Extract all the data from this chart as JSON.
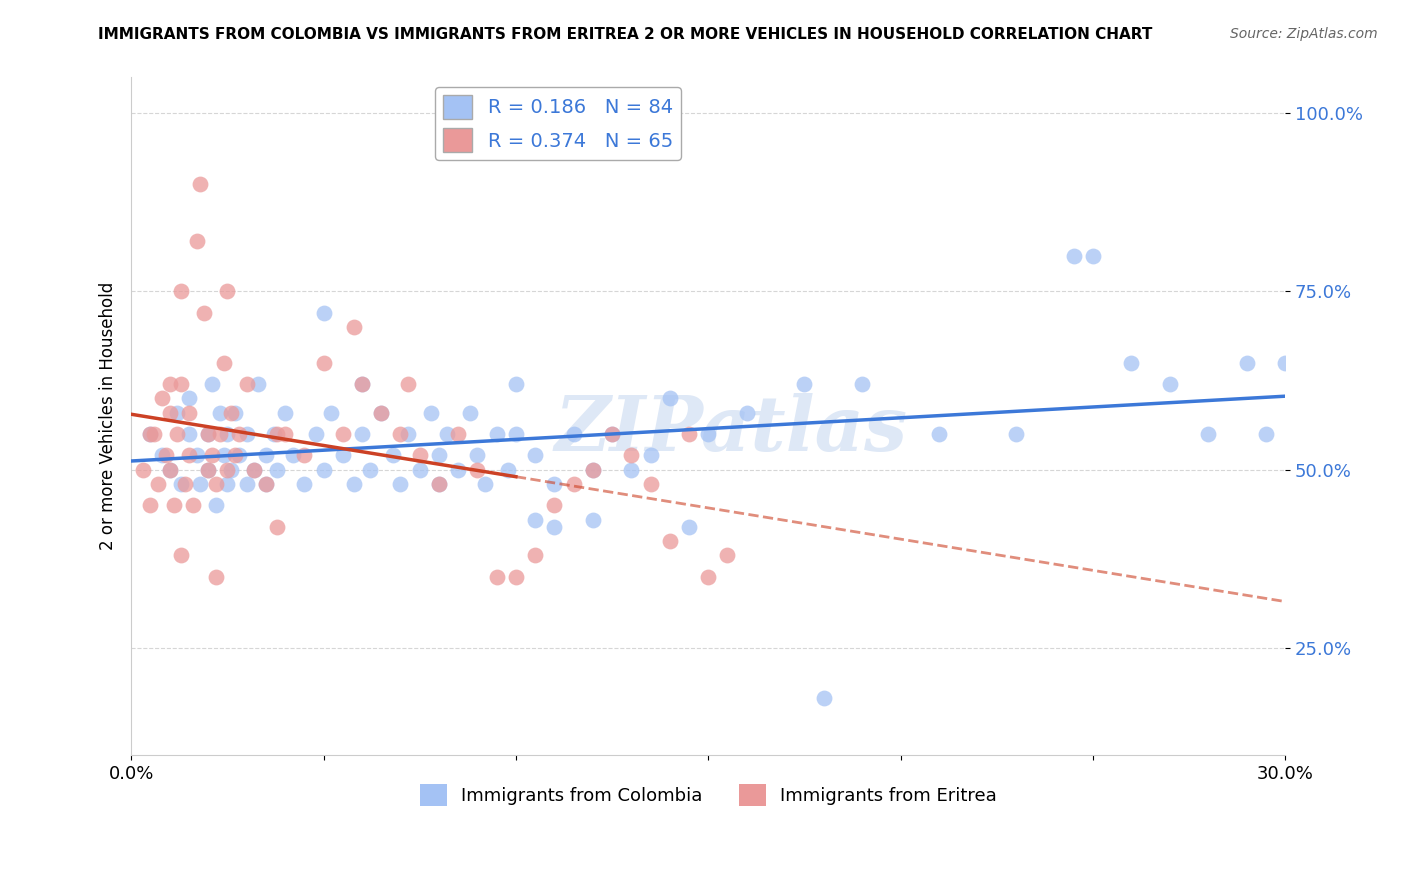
{
  "title": "IMMIGRANTS FROM COLOMBIA VS IMMIGRANTS FROM ERITREA 2 OR MORE VEHICLES IN HOUSEHOLD CORRELATION CHART",
  "source": "Source: ZipAtlas.com",
  "ylabel": "2 or more Vehicles in Household",
  "xlim": [
    0.0,
    30.0
  ],
  "ylim": [
    10.0,
    105.0
  ],
  "yticks": [
    25.0,
    50.0,
    75.0,
    100.0
  ],
  "ytick_labels": [
    "25.0%",
    "50.0%",
    "75.0%",
    "100.0%"
  ],
  "xticks": [
    0.0,
    5.0,
    10.0,
    15.0,
    20.0,
    25.0,
    30.0
  ],
  "xtick_labels": [
    "0.0%",
    "",
    "",
    "",
    "",
    "",
    "30.0%"
  ],
  "colombia_color": "#a4c2f4",
  "eritrea_color": "#ea9999",
  "colombia_line_color": "#3c78d8",
  "eritrea_line_color": "#cc4125",
  "colombia_R": 0.186,
  "colombia_N": 84,
  "eritrea_R": 0.374,
  "eritrea_N": 65,
  "watermark": "ZIPatlas",
  "colombia_scatter_x": [
    0.5,
    0.8,
    1.0,
    1.2,
    1.3,
    1.5,
    1.5,
    1.7,
    1.8,
    2.0,
    2.0,
    2.1,
    2.2,
    2.3,
    2.4,
    2.5,
    2.5,
    2.6,
    2.7,
    2.8,
    3.0,
    3.0,
    3.2,
    3.3,
    3.5,
    3.5,
    3.7,
    3.8,
    4.0,
    4.2,
    4.5,
    4.8,
    5.0,
    5.0,
    5.2,
    5.5,
    5.8,
    6.0,
    6.0,
    6.2,
    6.5,
    6.8,
    7.0,
    7.2,
    7.5,
    7.8,
    8.0,
    8.0,
    8.2,
    8.5,
    8.8,
    9.0,
    9.2,
    9.5,
    9.8,
    10.0,
    10.0,
    10.5,
    11.0,
    11.5,
    12.0,
    12.0,
    12.5,
    13.0,
    13.5,
    14.0,
    15.0,
    16.0,
    17.5,
    19.0,
    21.0,
    23.0,
    24.5,
    25.0,
    26.0,
    27.0,
    28.0,
    29.0,
    29.5,
    30.0,
    10.5,
    11.0,
    14.5,
    18.0
  ],
  "colombia_scatter_y": [
    55,
    52,
    50,
    58,
    48,
    55,
    60,
    52,
    48,
    55,
    50,
    62,
    45,
    58,
    52,
    55,
    48,
    50,
    58,
    52,
    48,
    55,
    50,
    62,
    52,
    48,
    55,
    50,
    58,
    52,
    48,
    55,
    72,
    50,
    58,
    52,
    48,
    62,
    55,
    50,
    58,
    52,
    48,
    55,
    50,
    58,
    52,
    48,
    55,
    50,
    58,
    52,
    48,
    55,
    50,
    55,
    62,
    52,
    48,
    55,
    50,
    43,
    55,
    50,
    52,
    60,
    55,
    58,
    62,
    62,
    55,
    55,
    80,
    80,
    65,
    62,
    55,
    65,
    55,
    65,
    43,
    42,
    42,
    18
  ],
  "eritrea_scatter_x": [
    0.3,
    0.5,
    0.5,
    0.6,
    0.7,
    0.8,
    0.9,
    1.0,
    1.0,
    1.0,
    1.1,
    1.2,
    1.3,
    1.3,
    1.4,
    1.5,
    1.5,
    1.6,
    1.7,
    1.8,
    1.9,
    2.0,
    2.0,
    2.1,
    2.2,
    2.3,
    2.4,
    2.5,
    2.5,
    2.6,
    2.7,
    2.8,
    3.0,
    3.2,
    3.5,
    3.8,
    4.0,
    4.5,
    5.0,
    5.5,
    6.0,
    6.5,
    7.0,
    7.5,
    8.0,
    8.5,
    9.0,
    9.5,
    10.0,
    10.5,
    11.0,
    11.5,
    12.0,
    12.5,
    13.0,
    13.5,
    14.0,
    14.5,
    15.0,
    15.5,
    1.3,
    2.2,
    3.8,
    5.8,
    7.2
  ],
  "eritrea_scatter_y": [
    50,
    45,
    55,
    55,
    48,
    60,
    52,
    50,
    58,
    62,
    45,
    55,
    62,
    75,
    48,
    52,
    58,
    45,
    82,
    90,
    72,
    50,
    55,
    52,
    48,
    55,
    65,
    50,
    75,
    58,
    52,
    55,
    62,
    50,
    48,
    55,
    55,
    52,
    65,
    55,
    62,
    58,
    55,
    52,
    48,
    55,
    50,
    35,
    35,
    38,
    45,
    48,
    50,
    55,
    52,
    48,
    40,
    55,
    35,
    38,
    38,
    35,
    42,
    70,
    62
  ]
}
